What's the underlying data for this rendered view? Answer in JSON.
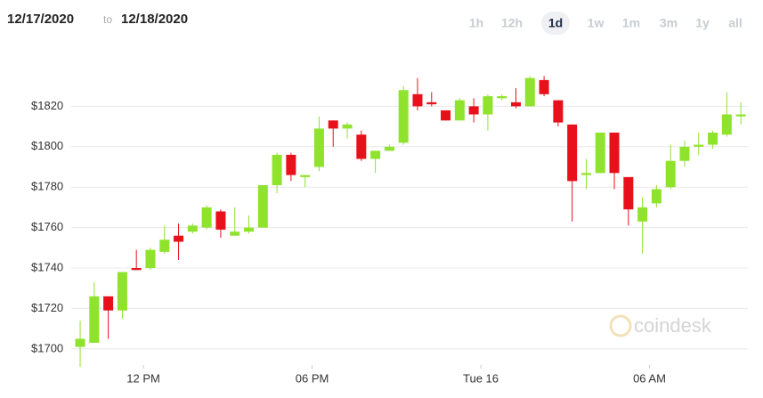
{
  "header": {
    "from": "12/17/2020",
    "to": "to",
    "until": "12/18/2020",
    "ranges": [
      "1h",
      "12h",
      "1d",
      "1w",
      "1m",
      "3m",
      "1y",
      "all"
    ],
    "selected": "1d"
  },
  "watermark": "coindesk",
  "chart_data": {
    "type": "candlestick",
    "up_color": "#8fe32d",
    "down_color": "#e8101b",
    "grid": true,
    "x": [
      9.75,
      10.25,
      10.75,
      11.25,
      11.75,
      12.25,
      12.75,
      13.25,
      13.75,
      14.25,
      14.75,
      15.25,
      15.75,
      16.25,
      16.75,
      17.25,
      17.75,
      18.25,
      18.75,
      19.25,
      19.75,
      20.25,
      20.75,
      21.25,
      21.75,
      22.25,
      22.75,
      23.25,
      23.75,
      24.25,
      24.75,
      25.25,
      25.75,
      26.25,
      26.75,
      27.25,
      27.75,
      28.25,
      28.75,
      29.25,
      29.75,
      30.25,
      30.75,
      31.25,
      31.75,
      32.25,
      32.75,
      33.25
    ],
    "open": [
      1701,
      1703,
      1726,
      1719,
      1740,
      1740,
      1748,
      1756,
      1758,
      1760,
      1768,
      1756,
      1758,
      1760,
      1781,
      1796,
      1785,
      1790,
      1813,
      1809,
      1806,
      1794,
      1798,
      1802,
      1826,
      1822,
      1818,
      1813,
      1820,
      1816,
      1824,
      1822,
      1820,
      1833,
      1823,
      1811,
      1786,
      1787,
      1807,
      1785,
      1763,
      1772,
      1780,
      1793,
      1800,
      1801,
      1806,
      1815
    ],
    "high": [
      1714,
      1733,
      1726,
      1738,
      1749,
      1750,
      1761,
      1762,
      1762,
      1771,
      1769,
      1770,
      1766,
      1781,
      1797,
      1797,
      1786,
      1815,
      1813,
      1812,
      1808,
      1798,
      1801,
      1830,
      1834,
      1827,
      1818,
      1824,
      1824,
      1826,
      1826,
      1829,
      1835,
      1835,
      1823,
      1811,
      1794,
      1807,
      1807,
      1785,
      1775,
      1781,
      1801,
      1803,
      1807,
      1808,
      1827,
      1822
    ],
    "low": [
      1691,
      1703,
      1705,
      1715,
      1739,
      1739,
      1747,
      1744,
      1757,
      1759,
      1755,
      1756,
      1757,
      1760,
      1777,
      1783,
      1780,
      1788,
      1800,
      1804,
      1793,
      1787,
      1798,
      1801,
      1818,
      1820,
      1813,
      1813,
      1812,
      1808,
      1823,
      1819,
      1820,
      1825,
      1810,
      1763,
      1779,
      1787,
      1779,
      1761,
      1747,
      1770,
      1779,
      1790,
      1796,
      1799,
      1805,
      1811
    ],
    "close": [
      1705,
      1726,
      1719,
      1738,
      1739,
      1749,
      1754,
      1753,
      1761,
      1770,
      1759,
      1758,
      1760,
      1781,
      1796,
      1786,
      1786,
      1809,
      1809,
      1811,
      1794,
      1798,
      1800,
      1828,
      1820,
      1821,
      1813,
      1823,
      1816,
      1825,
      1825,
      1820,
      1834,
      1826,
      1812,
      1783,
      1787,
      1807,
      1787,
      1769,
      1770,
      1779,
      1793,
      1800,
      1801,
      1807,
      1816,
      1816
    ],
    "xlim": [
      9.1,
      33.8
    ],
    "xticks": [
      {
        "value": 12,
        "label": "12 PM"
      },
      {
        "value": 18,
        "label": "06 PM"
      },
      {
        "value": 24,
        "label": "Tue 16"
      },
      {
        "value": 30,
        "label": "06 AM"
      }
    ],
    "ylim": [
      1692,
      1840
    ],
    "yticks": [
      {
        "value": 1700,
        "label": "$1700"
      },
      {
        "value": 1720,
        "label": "$1720"
      },
      {
        "value": 1740,
        "label": "$1740"
      },
      {
        "value": 1760,
        "label": "$1760"
      },
      {
        "value": 1780,
        "label": "$1780"
      },
      {
        "value": 1800,
        "label": "$1800"
      },
      {
        "value": 1820,
        "label": "$1820"
      }
    ]
  }
}
